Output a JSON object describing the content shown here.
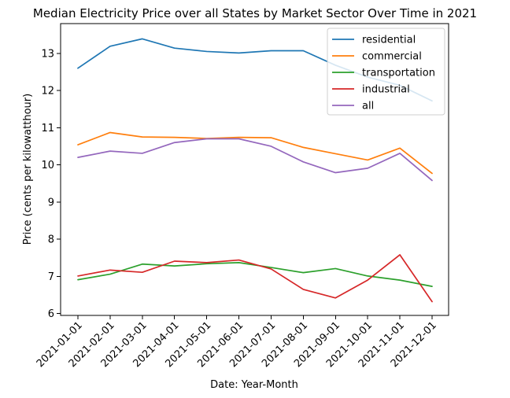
{
  "chart_data": {
    "type": "line",
    "title": "Median Electricity Price over all States by Market Sector Over Time in 2021",
    "xlabel": "Date: Year-Month",
    "ylabel": "Price (cents per kilowatthour)",
    "categories": [
      "2021-01-01",
      "2021-02-01",
      "2021-03-01",
      "2021-04-01",
      "2021-05-01",
      "2021-06-01",
      "2021-07-01",
      "2021-08-01",
      "2021-09-01",
      "2021-10-01",
      "2021-11-01",
      "2021-12-01"
    ],
    "ylim": [
      5.95,
      13.8
    ],
    "yticks": [
      6,
      7,
      8,
      9,
      10,
      11,
      12,
      13
    ],
    "grid": false,
    "legend_position": "top-right",
    "series": [
      {
        "name": "residential",
        "color": "#1f77b4",
        "values": [
          12.6,
          13.19,
          13.39,
          13.14,
          13.05,
          13.01,
          13.07,
          13.07,
          12.68,
          12.36,
          12.14,
          11.72
        ]
      },
      {
        "name": "commercial",
        "color": "#ff7f0e",
        "values": [
          10.54,
          10.87,
          10.75,
          10.74,
          10.71,
          10.74,
          10.73,
          10.47,
          10.3,
          10.13,
          10.45,
          9.77
        ]
      },
      {
        "name": "transportation",
        "color": "#2ca02c",
        "values": [
          6.91,
          7.06,
          7.33,
          7.28,
          7.34,
          7.37,
          7.24,
          7.1,
          7.21,
          7.01,
          6.9,
          6.73
        ]
      },
      {
        "name": "industrial",
        "color": "#d62728",
        "values": [
          7.01,
          7.17,
          7.11,
          7.41,
          7.37,
          7.44,
          7.2,
          6.65,
          6.42,
          6.9,
          7.58,
          6.32
        ]
      },
      {
        "name": "all",
        "color": "#9467bd",
        "values": [
          10.2,
          10.37,
          10.31,
          10.6,
          10.7,
          10.7,
          10.5,
          10.08,
          9.79,
          9.91,
          10.31,
          9.58
        ]
      }
    ]
  }
}
